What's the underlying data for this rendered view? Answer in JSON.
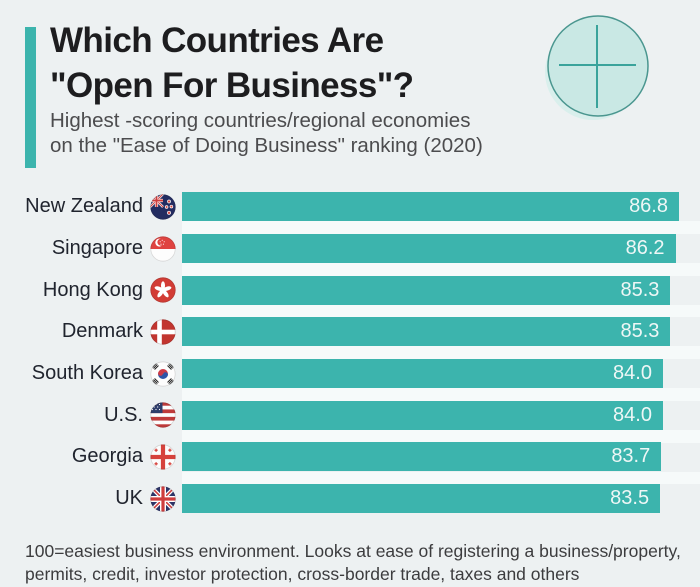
{
  "header": {
    "title_line1": "Which Countries Are",
    "title_line2": "\"Open For Business\"?",
    "subtitle_line1": "Highest -scoring countries/regional economies",
    "subtitle_line2": "on the \"Ease of Doing Business\" ranking (2020)"
  },
  "footnote": {
    "line1": "100=easiest business environment. Looks at ease of registering a business/property,",
    "line2": "permits, credit, investor protection, cross-border trade, taxes and others"
  },
  "colors": {
    "background": "#edf1f2",
    "bar": "#3cb4ad",
    "accent_bar": "#3cb4ad",
    "title_text": "#1d1d1f",
    "subtitle_text": "#4c4c4e",
    "label_text": "#20242e",
    "value_text": "#eef7f6",
    "footnote_text": "#3c3c3e",
    "icon_fill": "#c9e8e4",
    "icon_stroke": "#4a968f",
    "icon_cross": "#3aa39b",
    "row_gap_strip": "#f6fafa"
  },
  "chart_data": {
    "type": "bar",
    "orientation": "horizontal",
    "title": "Which Countries Are \"Open For Business\"?",
    "subtitle": "Highest -scoring countries/regional economies on the \"Ease of Doing Business\" ranking (2020)",
    "categories": [
      "New Zealand",
      "Singapore",
      "Hong Kong",
      "Denmark",
      "South Korea",
      "U.S.",
      "Georgia",
      "UK"
    ],
    "values": [
      86.8,
      86.2,
      85.3,
      85.3,
      84.0,
      84.0,
      83.7,
      83.5
    ],
    "value_labels": [
      "86.8",
      "86.2",
      "85.3",
      "85.3",
      "84.0",
      "84.0",
      "83.7",
      "83.5"
    ],
    "flag_ids": [
      "new-zealand",
      "singapore",
      "hong-kong",
      "denmark",
      "south-korea",
      "us",
      "georgia",
      "uk"
    ],
    "xlim": [
      0,
      86.8
    ],
    "value_label_position": "inside-right",
    "grid": false,
    "legend": false
  }
}
